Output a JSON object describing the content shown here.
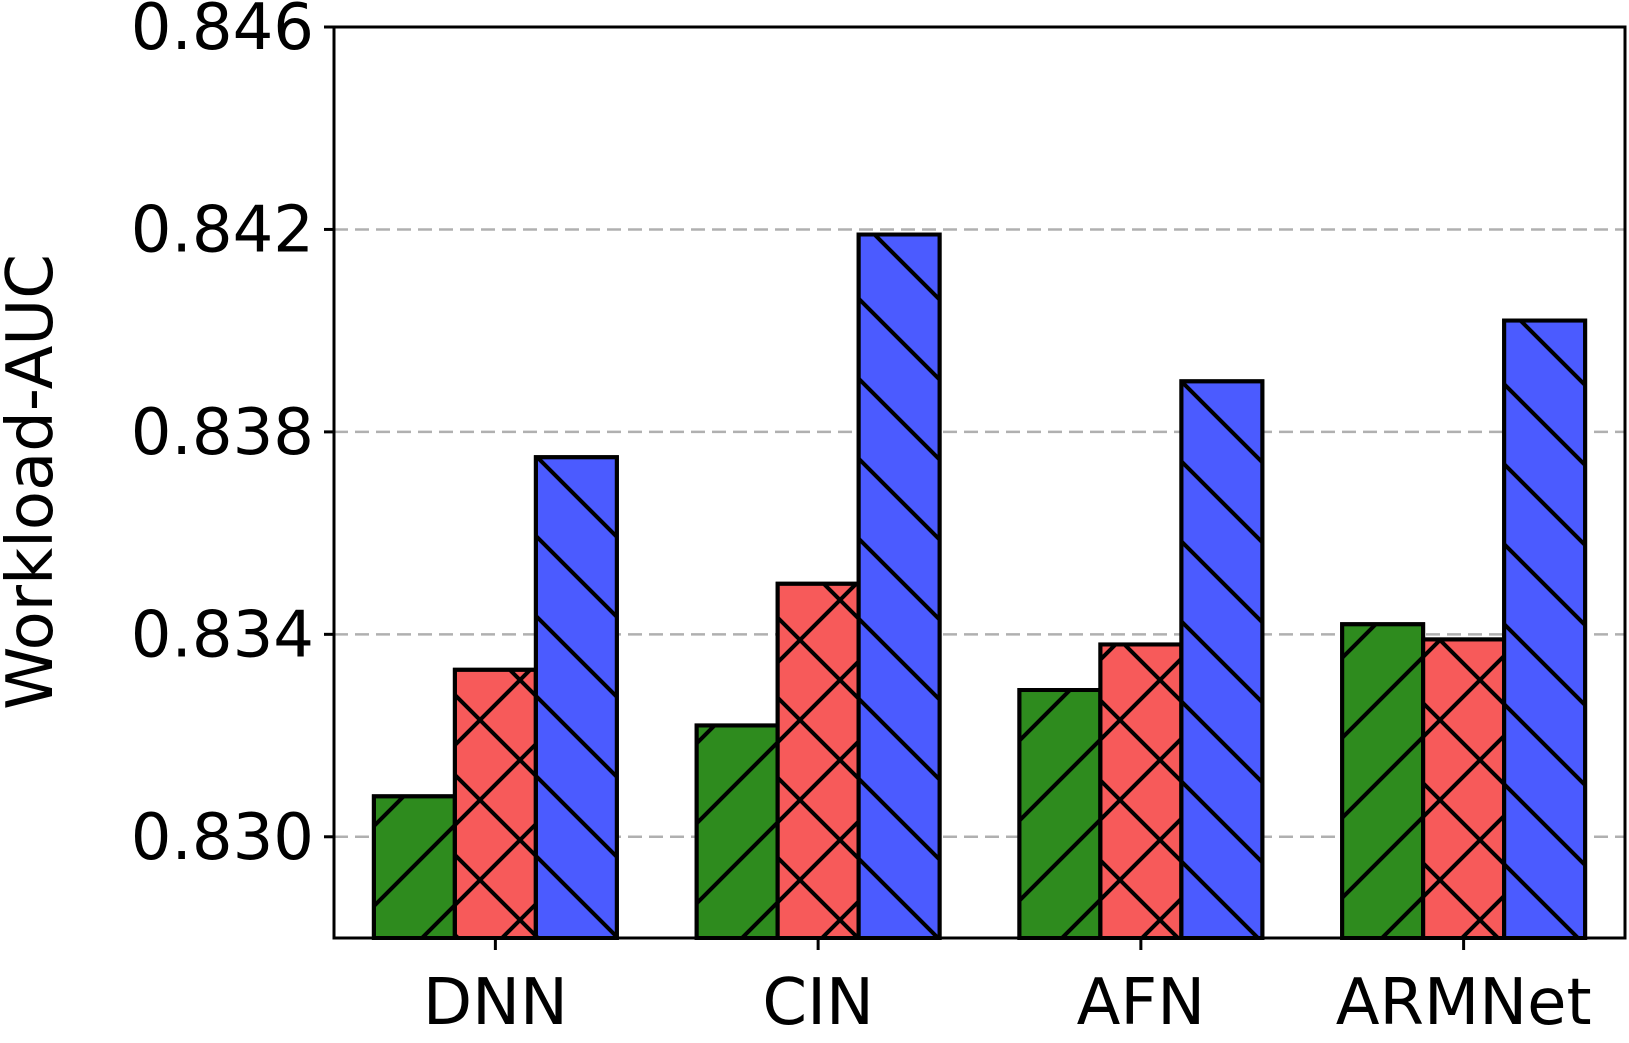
{
  "chart_data": {
    "type": "bar",
    "categories": [
      "DNN",
      "CIN",
      "AFN",
      "ARMNet"
    ],
    "series": [
      {
        "color": "#2e8b1e",
        "hatch": "/",
        "values": [
          0.8308,
          0.8322,
          0.8329,
          0.8342
        ]
      },
      {
        "color": "#f75a5a",
        "hatch": "x",
        "values": [
          0.8333,
          0.835,
          0.8338,
          0.8339
        ]
      },
      {
        "color": "#4b5bff",
        "hatch": "\\",
        "values": [
          0.8375,
          0.8419,
          0.839,
          0.8402
        ]
      }
    ],
    "ylabel": "Workload-AUC",
    "ylim": [
      0.828,
      0.846
    ],
    "yticks": [
      "0.830",
      "0.834",
      "0.838",
      "0.842",
      "0.846"
    ],
    "grid": "y-dashed"
  }
}
